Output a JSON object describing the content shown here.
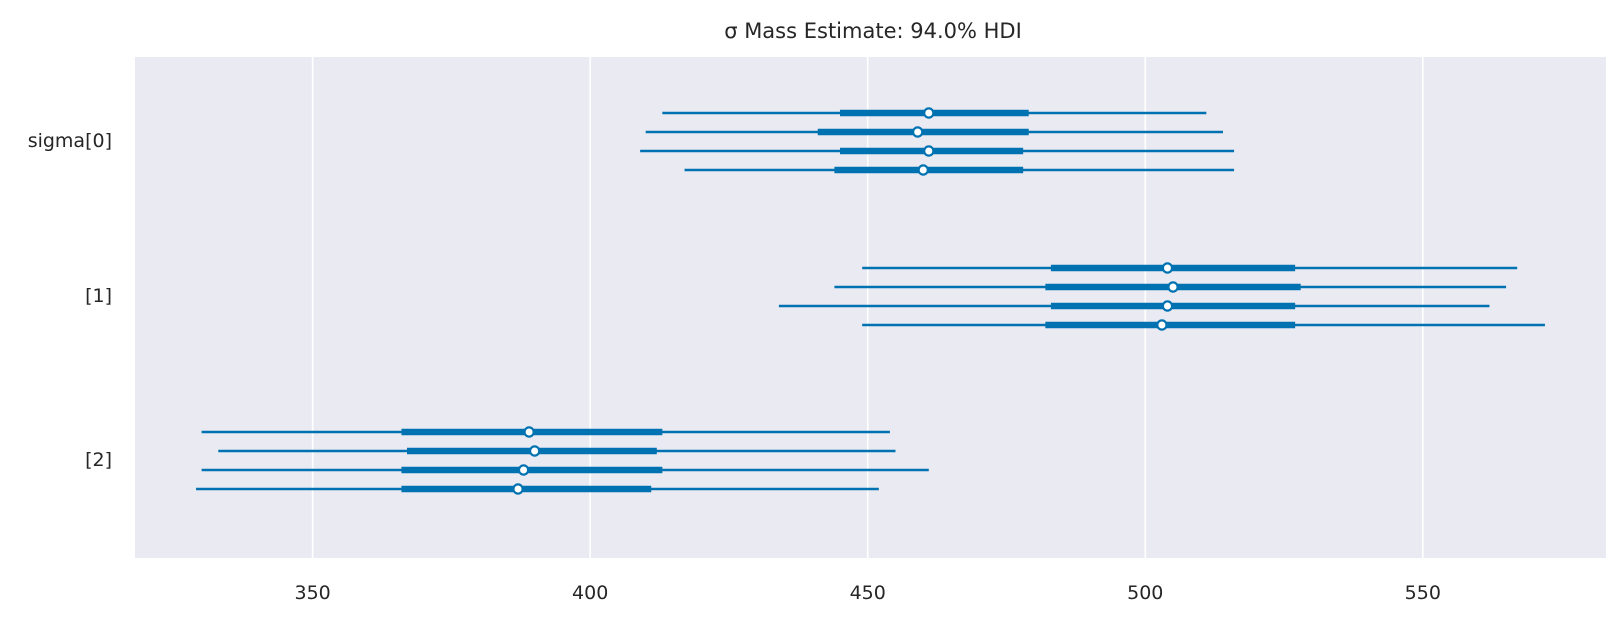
{
  "chart_data": {
    "type": "forest",
    "title": "σ Mass Estimate: 94.0% HDI",
    "xlabel": "",
    "ylabel": "",
    "xlim": [
      318,
      583
    ],
    "x_ticks": [
      350,
      400,
      450,
      500,
      550
    ],
    "x_tick_labels": [
      "350",
      "400",
      "450",
      "500",
      "550"
    ],
    "grid": "vertical",
    "legend": "none",
    "colors": {
      "background": "#eaeaf2",
      "grid": "#ffffff",
      "series": "#0072b2",
      "marker_fill": "#ffffff",
      "text": "#262626"
    },
    "groups": [
      {
        "label": "sigma[0]",
        "chains": [
          {
            "chain": 0,
            "hdi_94": [
              413,
              511
            ],
            "iqr": [
              445,
              479
            ],
            "median": 461
          },
          {
            "chain": 1,
            "hdi_94": [
              410,
              514
            ],
            "iqr": [
              441,
              479
            ],
            "median": 459
          },
          {
            "chain": 2,
            "hdi_94": [
              409,
              516
            ],
            "iqr": [
              445,
              478
            ],
            "median": 461
          },
          {
            "chain": 3,
            "hdi_94": [
              417,
              516
            ],
            "iqr": [
              444,
              478
            ],
            "median": 460
          }
        ]
      },
      {
        "label": "[1]",
        "chains": [
          {
            "chain": 0,
            "hdi_94": [
              449,
              567
            ],
            "iqr": [
              483,
              527
            ],
            "median": 504
          },
          {
            "chain": 1,
            "hdi_94": [
              444,
              565
            ],
            "iqr": [
              482,
              528
            ],
            "median": 505
          },
          {
            "chain": 2,
            "hdi_94": [
              434,
              562
            ],
            "iqr": [
              483,
              527
            ],
            "median": 504
          },
          {
            "chain": 3,
            "hdi_94": [
              449,
              572
            ],
            "iqr": [
              482,
              527
            ],
            "median": 503
          }
        ]
      },
      {
        "label": "[2]",
        "chains": [
          {
            "chain": 0,
            "hdi_94": [
              330,
              454
            ],
            "iqr": [
              366,
              413
            ],
            "median": 389
          },
          {
            "chain": 1,
            "hdi_94": [
              333,
              455
            ],
            "iqr": [
              367,
              412
            ],
            "median": 390
          },
          {
            "chain": 2,
            "hdi_94": [
              330,
              461
            ],
            "iqr": [
              366,
              413
            ],
            "median": 388
          },
          {
            "chain": 3,
            "hdi_94": [
              329,
              452
            ],
            "iqr": [
              366,
              411
            ],
            "median": 387
          }
        ]
      }
    ]
  }
}
